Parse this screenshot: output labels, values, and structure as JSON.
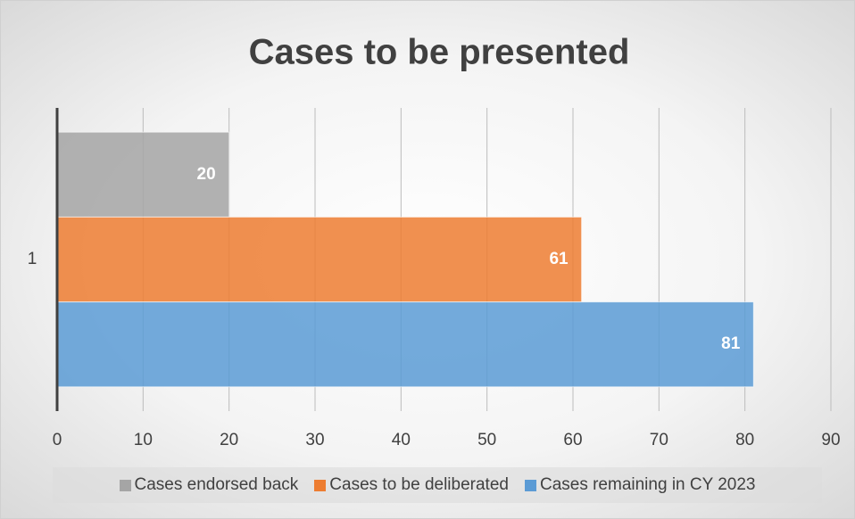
{
  "chart_data": {
    "type": "barh",
    "title": "Cases to be presented",
    "categories": [
      "1"
    ],
    "series": [
      {
        "name": "Cases endorsed back",
        "color": "#a5a5a5",
        "values": [
          20
        ]
      },
      {
        "name": "Cases to be deliberated",
        "color": "#ed7d31",
        "values": [
          61
        ]
      },
      {
        "name": "Cases remaining in CY 2023",
        "color": "#5b9bd5",
        "values": [
          81
        ]
      }
    ],
    "xlim": [
      0,
      90
    ],
    "xticks": [
      0,
      10,
      20,
      30,
      40,
      50,
      60,
      70,
      80,
      90
    ],
    "grid": true,
    "legend": "bottom"
  }
}
